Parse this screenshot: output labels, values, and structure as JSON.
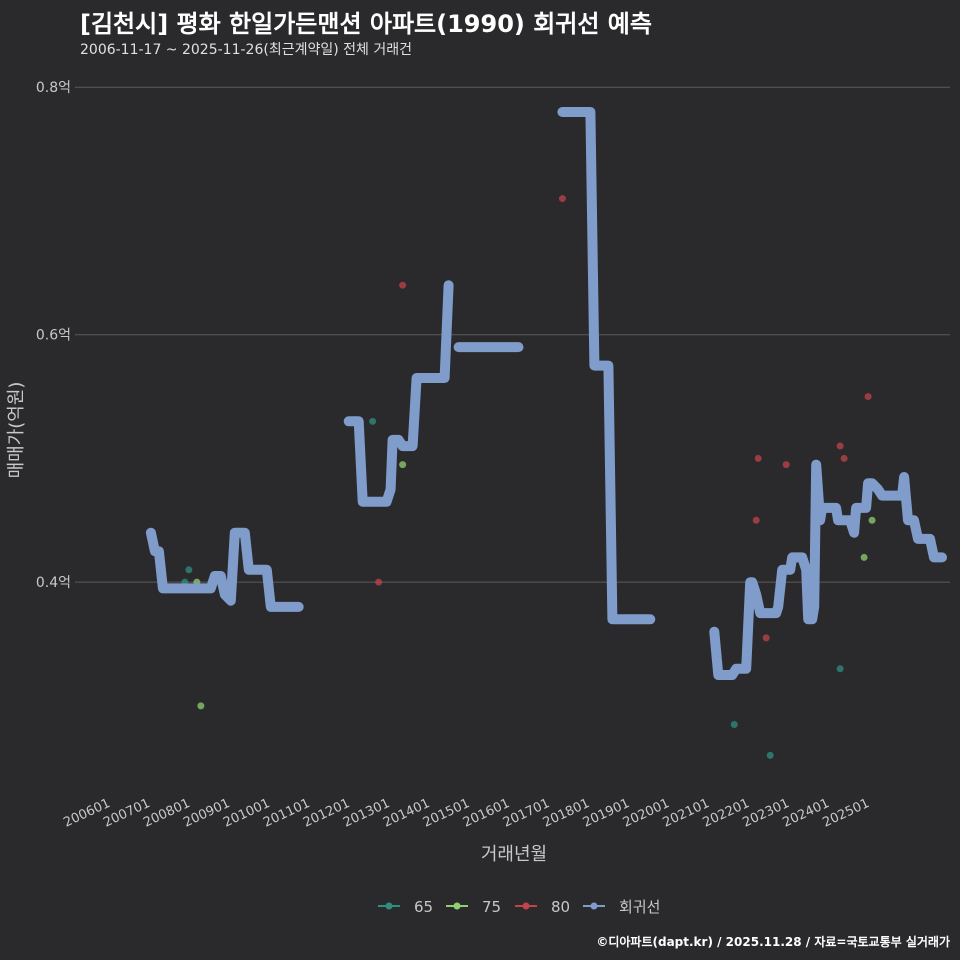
{
  "header": {
    "title": "[김천시] 평화 한일가든맨션 아파트(1990) 회귀선 예측",
    "subtitle": "2006-11-17 ~ 2025-11-26(최근계약일) 전체 거래건"
  },
  "caption": "©디아파트(dapt.kr) / 2025.11.28 / 자료=국토교통부 실거래가",
  "colors": {
    "background": "#2a2a2c",
    "grid": "#5a5a5c",
    "regression": "#7f9ccb",
    "s65": "#2f8f7f",
    "s75": "#8fcf6f",
    "s80": "#c0444a"
  },
  "chart_data": {
    "type": "scatter+line",
    "xlabel": "거래년월",
    "ylabel": "매매가(억원)",
    "ylim": [
      0.228,
      0.822
    ],
    "xlim": [
      2005.1,
      2027.0
    ],
    "yticks": [
      {
        "value": 0.4,
        "label": "0.4억"
      },
      {
        "value": 0.6,
        "label": "0.6억"
      },
      {
        "value": 0.8,
        "label": "0.8억"
      }
    ],
    "xticks": [
      "200601",
      "200701",
      "200801",
      "200901",
      "201001",
      "201101",
      "201201",
      "201301",
      "201401",
      "201501",
      "201601",
      "201701",
      "201801",
      "201901",
      "202001",
      "202101",
      "202201",
      "202301",
      "202401",
      "202501"
    ],
    "legend": [
      {
        "name": "65",
        "color_key": "s65"
      },
      {
        "name": "75",
        "color_key": "s75"
      },
      {
        "name": "80",
        "color_key": "s80"
      },
      {
        "name": "회귀선",
        "color_key": "regression"
      }
    ],
    "points": [
      {
        "group": "65",
        "x": 2007.85,
        "y": 0.4
      },
      {
        "group": "65",
        "x": 2007.95,
        "y": 0.41
      },
      {
        "group": "75",
        "x": 2008.15,
        "y": 0.4
      },
      {
        "group": "75",
        "x": 2008.25,
        "y": 0.3
      },
      {
        "group": "65",
        "x": 2012.55,
        "y": 0.53
      },
      {
        "group": "80",
        "x": 2012.7,
        "y": 0.4
      },
      {
        "group": "75",
        "x": 2013.3,
        "y": 0.495
      },
      {
        "group": "80",
        "x": 2013.3,
        "y": 0.64
      },
      {
        "group": "80",
        "x": 2017.3,
        "y": 0.71
      },
      {
        "group": "65",
        "x": 2021.6,
        "y": 0.285
      },
      {
        "group": "80",
        "x": 2021.95,
        "y": 0.355
      },
      {
        "group": "80",
        "x": 2022.15,
        "y": 0.45
      },
      {
        "group": "80",
        "x": 2022.2,
        "y": 0.5
      },
      {
        "group": "80",
        "x": 2022.4,
        "y": 0.355
      },
      {
        "group": "65",
        "x": 2022.5,
        "y": 0.26
      },
      {
        "group": "80",
        "x": 2022.9,
        "y": 0.495
      },
      {
        "group": "65",
        "x": 2024.25,
        "y": 0.33
      },
      {
        "group": "80",
        "x": 2024.25,
        "y": 0.51
      },
      {
        "group": "80",
        "x": 2024.35,
        "y": 0.5
      },
      {
        "group": "75",
        "x": 2024.85,
        "y": 0.42
      },
      {
        "group": "80",
        "x": 2024.95,
        "y": 0.55
      },
      {
        "group": "75",
        "x": 2025.05,
        "y": 0.45
      }
    ],
    "regression_segments": [
      [
        [
          2007.0,
          0.44
        ],
        [
          2007.1,
          0.425
        ],
        [
          2007.2,
          0.425
        ],
        [
          2007.3,
          0.395
        ],
        [
          2008.5,
          0.395
        ],
        [
          2008.6,
          0.405
        ],
        [
          2008.75,
          0.405
        ],
        [
          2008.85,
          0.39
        ],
        [
          2009.0,
          0.385
        ],
        [
          2009.1,
          0.44
        ],
        [
          2009.35,
          0.44
        ],
        [
          2009.45,
          0.41
        ],
        [
          2009.9,
          0.41
        ],
        [
          2010.0,
          0.38
        ],
        [
          2010.7,
          0.38
        ]
      ],
      [
        [
          2011.95,
          0.53
        ],
        [
          2012.2,
          0.53
        ],
        [
          2012.3,
          0.465
        ],
        [
          2012.9,
          0.465
        ],
        [
          2013.0,
          0.475
        ],
        [
          2013.05,
          0.515
        ],
        [
          2013.2,
          0.515
        ],
        [
          2013.3,
          0.51
        ],
        [
          2013.55,
          0.51
        ],
        [
          2013.65,
          0.565
        ],
        [
          2014.35,
          0.565
        ],
        [
          2014.45,
          0.64
        ]
      ],
      [
        [
          2014.7,
          0.59
        ],
        [
          2016.2,
          0.59
        ]
      ],
      [
        [
          2017.3,
          0.78
        ],
        [
          2018.0,
          0.78
        ],
        [
          2018.1,
          0.575
        ],
        [
          2018.45,
          0.575
        ],
        [
          2018.55,
          0.37
        ],
        [
          2019.5,
          0.37
        ]
      ],
      [
        [
          2021.1,
          0.36
        ],
        [
          2021.2,
          0.325
        ],
        [
          2021.55,
          0.325
        ],
        [
          2021.65,
          0.33
        ],
        [
          2021.9,
          0.33
        ],
        [
          2022.0,
          0.4
        ],
        [
          2022.05,
          0.4
        ],
        [
          2022.15,
          0.39
        ],
        [
          2022.25,
          0.375
        ],
        [
          2022.65,
          0.375
        ],
        [
          2022.7,
          0.38
        ],
        [
          2022.8,
          0.41
        ],
        [
          2023.0,
          0.41
        ],
        [
          2023.05,
          0.42
        ],
        [
          2023.3,
          0.42
        ],
        [
          2023.4,
          0.41
        ],
        [
          2023.45,
          0.37
        ],
        [
          2023.55,
          0.37
        ],
        [
          2023.6,
          0.38
        ],
        [
          2023.65,
          0.495
        ],
        [
          2023.75,
          0.45
        ],
        [
          2023.8,
          0.46
        ],
        [
          2024.15,
          0.46
        ],
        [
          2024.2,
          0.45
        ],
        [
          2024.5,
          0.45
        ],
        [
          2024.6,
          0.44
        ],
        [
          2024.65,
          0.46
        ],
        [
          2024.9,
          0.46
        ],
        [
          2024.95,
          0.48
        ],
        [
          2025.05,
          0.48
        ],
        [
          2025.2,
          0.475
        ],
        [
          2025.3,
          0.47
        ],
        [
          2025.8,
          0.47
        ],
        [
          2025.85,
          0.485
        ],
        [
          2025.95,
          0.45
        ],
        [
          2026.1,
          0.45
        ],
        [
          2026.2,
          0.435
        ],
        [
          2026.5,
          0.435
        ],
        [
          2026.6,
          0.42
        ],
        [
          2026.8,
          0.42
        ]
      ]
    ]
  }
}
